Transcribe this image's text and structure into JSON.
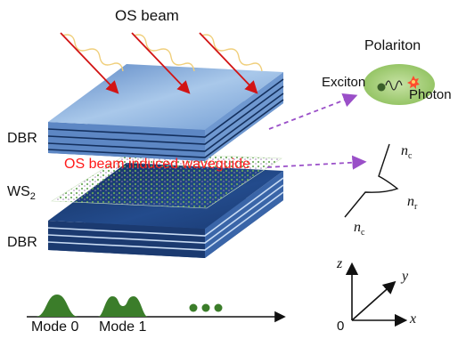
{
  "labels": {
    "os_beam": "OS beam",
    "dbr_top": "DBR",
    "dbr_bottom": "DBR",
    "ws2_main": "WS",
    "ws2_sub": "2",
    "waveguide": "OS beam induced waveguide",
    "polariton": "Polariton",
    "exciton": "Exciton",
    "photon": "Photon",
    "mode0": "Mode 0",
    "mode1": "Mode 1",
    "n_c_top": "n",
    "n_c_top_sub": "c",
    "n_r": "n",
    "n_r_sub": "r",
    "n_c_bottom": "n",
    "n_c_bottom_sub": "c",
    "axis_z": "z",
    "axis_y": "y",
    "axis_x": "x",
    "axis_origin": "0"
  },
  "colors": {
    "dbr_top": "#8fb4df",
    "dbr_bottom": "#1f3f78",
    "beam_arrow": "#d21414",
    "beam_wave": "#f2d58a",
    "waveguide_text": "#ff1a1a",
    "dashed_arrow": "#9a4fc8",
    "polariton_blob": "#a9cf7a",
    "mode_fill": "#3b7d2a"
  },
  "icons": [
    "exciton-dot",
    "photon-star",
    "wavy-line"
  ]
}
